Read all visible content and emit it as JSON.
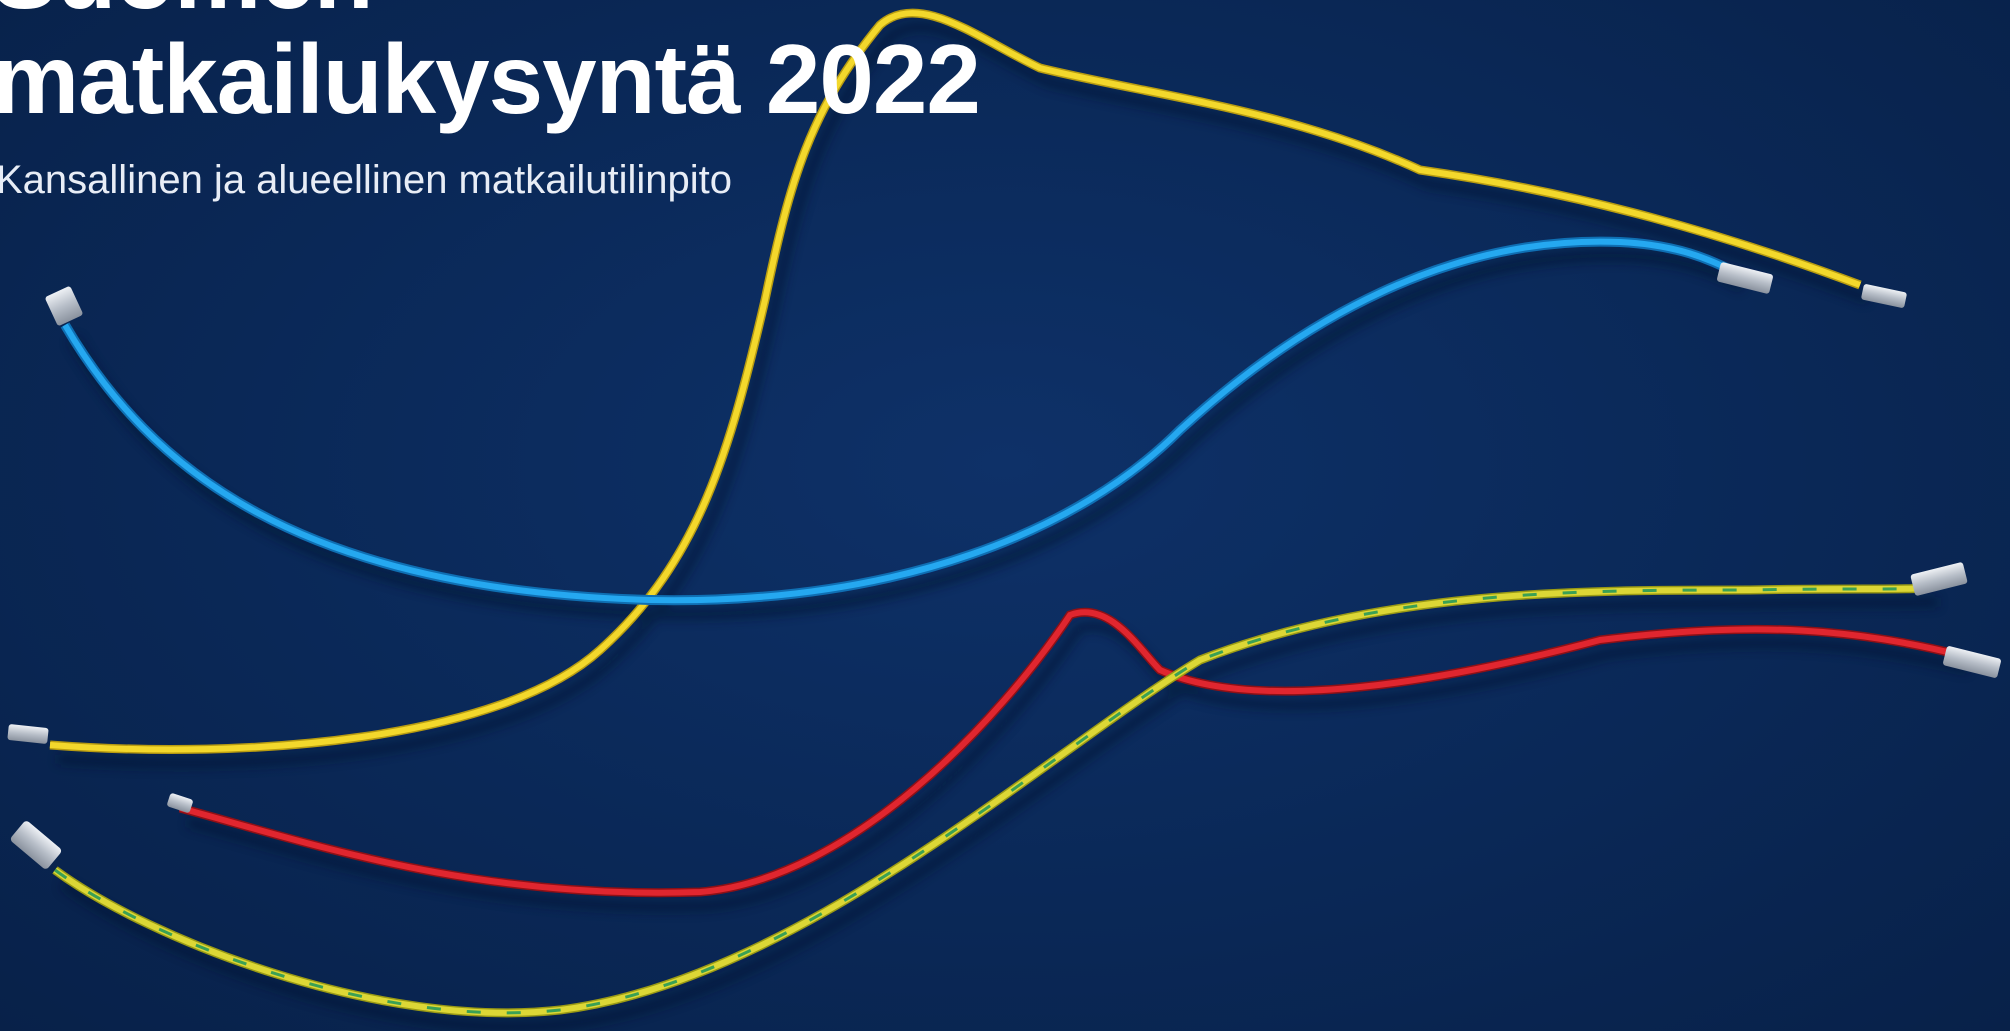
{
  "title_lines": [
    "Suomen",
    "matkailukysyntä 2022"
  ],
  "subtitle": "Kansallinen ja alueellinen matkailutilinpito",
  "colors": {
    "background": "#0b2a5c",
    "text": "#ffffff",
    "wire_yellow": "#f0d52a",
    "wire_blue": "#1f9be8",
    "wire_red": "#d6202a",
    "wire_yellow_green": "#d9d534",
    "terminal_metal": "#c9ced6"
  }
}
